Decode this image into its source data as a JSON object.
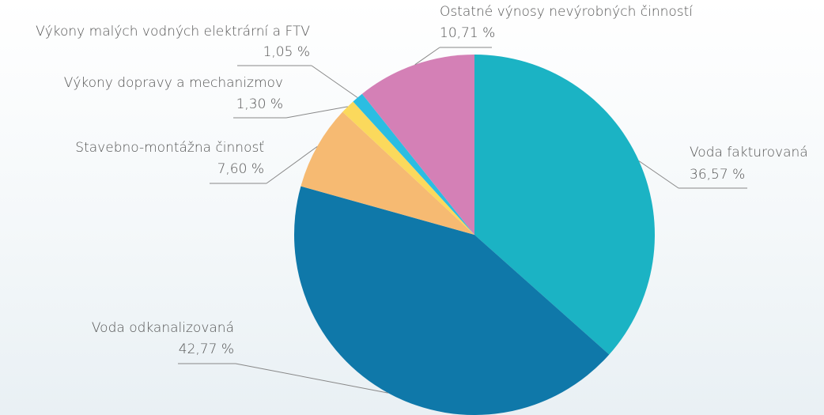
{
  "chart_data": {
    "type": "pie",
    "categories": [
      "Voda fakturovaná",
      "Voda odkanalizovaná",
      "Stavebno-montážna činnosť",
      "Výkony dopravy a mechanizmov",
      "Výkony malých vodných elektrární a FTV",
      "Ostatné výnosy nevýrobných činností"
    ],
    "values": [
      36.57,
      42.77,
      7.6,
      1.3,
      1.05,
      10.71
    ],
    "value_labels": [
      "36,57 %",
      "42,77 %",
      "7,60 %",
      "1,30 %",
      "1,05 %",
      "10,71 %"
    ],
    "colors": [
      "#1bb3c4",
      "#0f78a9",
      "#f6ba72",
      "#fbd95c",
      "#2bbde2",
      "#d480b6"
    ]
  }
}
